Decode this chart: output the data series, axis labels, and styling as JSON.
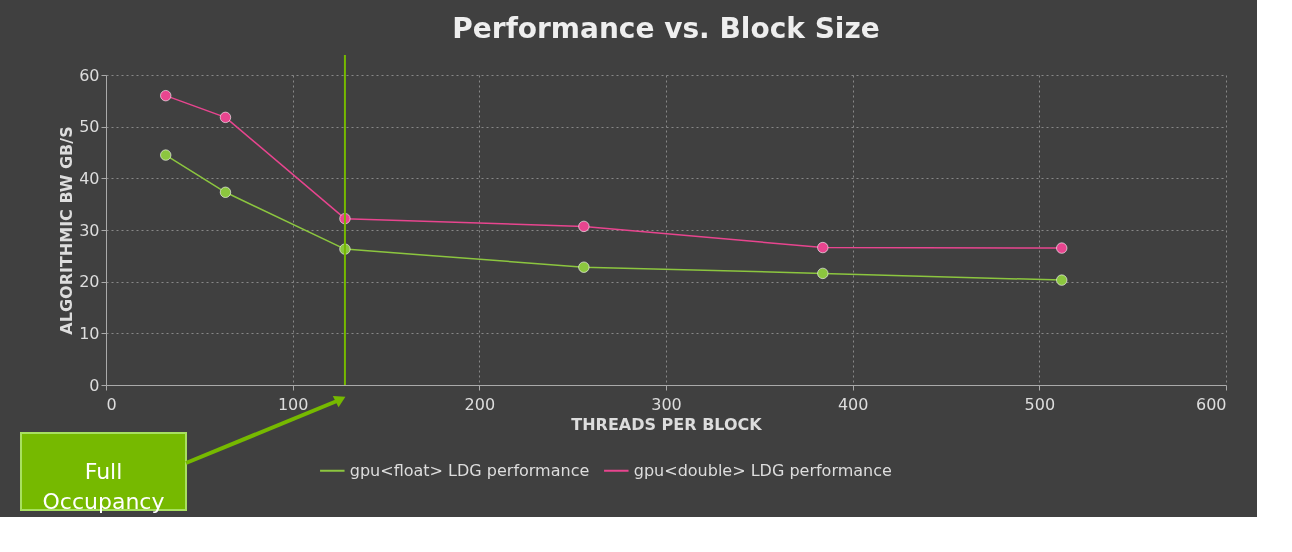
{
  "chart_data": {
    "type": "line",
    "title": "Performance vs. Block Size",
    "xlabel": "THREADS PER BLOCK",
    "ylabel": "ALGORITHMIC BW GB/S",
    "x": [
      32,
      64,
      128,
      256,
      384,
      512
    ],
    "series": [
      {
        "name": "gpu<float> LDG performance",
        "color": "#8cc63f",
        "values": [
          44.5,
          37.3,
          26.3,
          22.8,
          21.6,
          20.3
        ]
      },
      {
        "name": "gpu<double> LDG performance",
        "color": "#e8458f",
        "values": [
          56.0,
          51.8,
          32.2,
          30.7,
          26.6,
          26.5
        ]
      }
    ],
    "xlim": [
      0,
      600
    ],
    "xticks": [
      0,
      100,
      200,
      300,
      400,
      500,
      600
    ],
    "ylim": [
      0,
      60
    ],
    "yticks": [
      0,
      10,
      20,
      30,
      40,
      50,
      60
    ],
    "ref_lines": [
      {
        "axis": "x",
        "value": 128,
        "color": "#76b900"
      }
    ],
    "annotations": [
      "Full Occupancy"
    ],
    "grid": true,
    "legend": "bottom",
    "marker": "circle",
    "line_style": "solid"
  }
}
